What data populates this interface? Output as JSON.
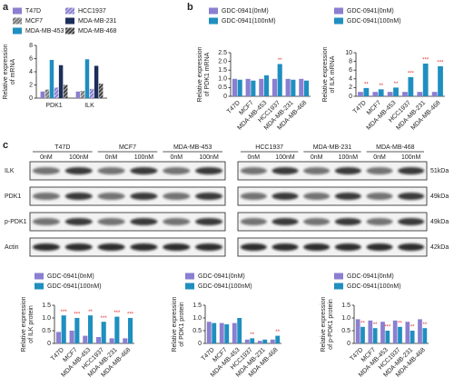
{
  "panel_labels": [
    "a",
    "b",
    "c"
  ],
  "chart_data": [
    {
      "type": "bar",
      "ylabel": [
        "Relative expression",
        "of mRNA"
      ],
      "categories": [
        "PDK1",
        "ILK"
      ],
      "ylim": [
        0,
        8
      ],
      "yticks": [
        0,
        2,
        4,
        6,
        8
      ],
      "series": [
        {
          "name": "T47D",
          "color": "#8a7fd0",
          "hatch": false,
          "values": [
            1,
            1
          ]
        },
        {
          "name": "MCF7",
          "color": "#7a7a7a",
          "hatch": true,
          "values": [
            1.3,
            1.1
          ]
        },
        {
          "name": "MDA-MB-453",
          "color": "#1f8fbf",
          "hatch": false,
          "values": [
            5.8,
            5.9
          ]
        },
        {
          "name": "HCC1937",
          "color": "#8a7fd0",
          "hatch": true,
          "values": [
            1.6,
            1.4
          ]
        },
        {
          "name": "MDA-MB-231",
          "color": "#1c2e5a",
          "hatch": false,
          "values": [
            5,
            4.9
          ]
        },
        {
          "name": "MDA-MB-468",
          "color": "#444",
          "hatch": true,
          "values": [
            2,
            2.2
          ]
        }
      ]
    },
    {
      "type": "bar",
      "ylabel": [
        "Relative expression",
        "of PDK1 mRNA"
      ],
      "categories": [
        "T47D",
        "MCF7",
        "MDA-MB-453",
        "HCC1937",
        "MDA-MB-231",
        "MDA-MB-468"
      ],
      "ylim": [
        0,
        2.5
      ],
      "yticks": [
        0,
        0.5,
        {
          "value": 1,
          "label": "1.0"
        },
        1.5,
        {
          "value": 2,
          "label": "2.0"
        },
        2.5
      ],
      "series": [
        {
          "name": "GDC-0941(0nM)",
          "color": "#8a7fd0",
          "hatch": false,
          "values": [
            1,
            1,
            1,
            1,
            1,
            1
          ]
        },
        {
          "name": "GDC-0941(100nM)",
          "color": "#1f8fbf",
          "hatch": false,
          "values": [
            0.95,
            0.9,
            1.2,
            1.85,
            0.95,
            0.9
          ],
          "annotations": [
            null,
            null,
            null,
            "**",
            null,
            null
          ]
        }
      ]
    },
    {
      "type": "bar",
      "ylabel": [
        "Relative expression",
        "of ILK mRNA"
      ],
      "categories": [
        "T47D",
        "MCF7",
        "MDA-MB-453",
        "HCC1937",
        "MDA-MB-231",
        "MDA-MB-468"
      ],
      "ylim": [
        0,
        10
      ],
      "yticks": [
        0,
        2,
        4,
        6,
        8,
        10
      ],
      "series": [
        {
          "name": "GDC-0941(0nM)",
          "color": "#8a7fd0",
          "hatch": false,
          "values": [
            1,
            1,
            1,
            1,
            1,
            1
          ]
        },
        {
          "name": "GDC-0941(100nM)",
          "color": "#1f8fbf",
          "hatch": false,
          "values": [
            1.9,
            1.6,
            2,
            4.4,
            7.5,
            6.9
          ],
          "annotations": [
            "**",
            "**",
            "**",
            "***",
            "***",
            "***"
          ]
        }
      ]
    },
    {
      "type": "bar",
      "ylabel": [
        "Relative expression",
        "of ILK protein"
      ],
      "categories": [
        "T47D",
        "MCF7",
        "MDA-MB-453",
        "HCC1937",
        "MDA-MB-231",
        "MDA-MB-468"
      ],
      "ylim": [
        0,
        1.5
      ],
      "yticks": [
        0,
        0.5,
        {
          "value": 1,
          "label": "1.0"
        },
        1.5
      ],
      "series": [
        {
          "name": "GDC-0941(0nM)",
          "color": "#8a7fd0",
          "hatch": false,
          "values": [
            0.45,
            0.5,
            0.3,
            0.25,
            0.2,
            0.2
          ]
        },
        {
          "name": "GDC-0941(100nM)",
          "color": "#1f8fbf",
          "hatch": false,
          "values": [
            1.1,
            1,
            1.1,
            0.85,
            1.05,
            1
          ],
          "annotations": [
            "***",
            "***",
            "**",
            "***",
            "***",
            "***"
          ]
        }
      ]
    },
    {
      "type": "bar",
      "ylabel": [
        "Relative expression",
        "of PDK1 protein"
      ],
      "categories": [
        "T47D",
        "MCF7",
        "MDA-MB-453",
        "HCC1937",
        "MDA-MB-231",
        "MDA-MB-468"
      ],
      "ylim": [
        0,
        1.5
      ],
      "yticks": [
        0,
        0.5,
        {
          "value": 1,
          "label": "1.0"
        },
        1.5
      ],
      "series": [
        {
          "name": "GDC-0941(0nM)",
          "color": "#8a7fd0",
          "hatch": false,
          "values": [
            0.85,
            0.8,
            0.8,
            0.15,
            0.1,
            0.15
          ]
        },
        {
          "name": "GDC-0941(100nM)",
          "color": "#1f8fbf",
          "hatch": false,
          "values": [
            0.8,
            0.75,
            1,
            0.2,
            0.15,
            0.3
          ],
          "annotations": [
            null,
            null,
            null,
            "**",
            null,
            "**"
          ]
        }
      ]
    },
    {
      "type": "bar",
      "ylabel": [
        "Relative expression",
        "of p-PDK1 protein"
      ],
      "categories": [
        "T47D",
        "MCF7",
        "MDA-MB-453",
        "HCC1937",
        "MDA-MB-231",
        "MDA-MB-468"
      ],
      "ylim": [
        0,
        1.5
      ],
      "yticks": [
        0,
        0.5,
        {
          "value": 1,
          "label": "1.0"
        },
        1.5
      ],
      "series": [
        {
          "name": "GDC-0941(0nM)",
          "color": "#8a7fd0",
          "hatch": false,
          "values": [
            0.95,
            0.9,
            0.85,
            0.9,
            0.85,
            0.95
          ]
        },
        {
          "name": "GDC-0941(100nM)",
          "color": "#1f8fbf",
          "hatch": false,
          "values": [
            0.65,
            0.6,
            0.5,
            0.65,
            0.5,
            0.6
          ],
          "annotations": [
            "**",
            "**",
            "***",
            "**",
            "**",
            "**"
          ]
        }
      ]
    }
  ],
  "blot": {
    "cell_lines": [
      "T47D",
      "MCF7",
      "MDA-MB-453",
      "HCC1937",
      "MDA-MB-231",
      "MDA-MB-468"
    ],
    "doses": [
      "0nM",
      "100nM"
    ],
    "rows": [
      {
        "label": "ILK",
        "kda": "51kDa"
      },
      {
        "label": "PDK1",
        "kda": "49kDa"
      },
      {
        "label": "p-PDK1",
        "kda": "49kDa"
      },
      {
        "label": "Actin",
        "kda": "42kDa"
      }
    ]
  }
}
